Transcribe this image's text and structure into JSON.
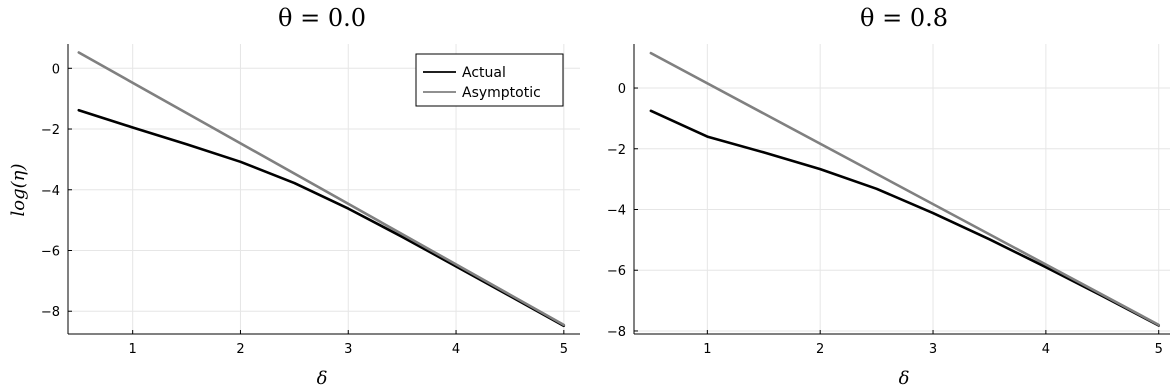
{
  "chart_data": [
    {
      "type": "line",
      "title": "θ = 0.0",
      "xlabel": "δ",
      "ylabel": "log(η)",
      "xlim": [
        0.4,
        5.15
      ],
      "ylim": [
        -8.75,
        0.8
      ],
      "xticks": [
        1,
        2,
        3,
        4,
        5
      ],
      "yticks": [
        0,
        -2,
        -4,
        -6,
        -8
      ],
      "ytick_labels": [
        "0",
        "−2",
        "−4",
        "−6",
        "−8"
      ],
      "grid": true,
      "legend": "top-right",
      "series": [
        {
          "name": "Actual",
          "color": "#000000",
          "x": [
            0.5,
            1.0,
            1.5,
            2.0,
            2.5,
            3.0,
            3.5,
            4.0,
            4.5,
            5.0
          ],
          "y": [
            -1.38,
            -1.95,
            -2.5,
            -3.08,
            -3.78,
            -4.62,
            -5.55,
            -6.52,
            -7.5,
            -8.48
          ]
        },
        {
          "name": "Asymptotic",
          "color": "#808080",
          "x": [
            0.5,
            5.0
          ],
          "y": [
            0.52,
            -8.45
          ]
        }
      ]
    },
    {
      "type": "line",
      "title": "θ = 0.8",
      "xlabel": "δ",
      "ylabel": "",
      "xlim": [
        0.35,
        5.1
      ],
      "ylim": [
        -8.1,
        1.45
      ],
      "xticks": [
        1,
        2,
        3,
        4,
        5
      ],
      "yticks": [
        0,
        -2,
        -4,
        -6,
        -8
      ],
      "ytick_labels": [
        "0",
        "−2",
        "−4",
        "−6",
        "−8"
      ],
      "grid": true,
      "legend": "none",
      "series": [
        {
          "name": "Actual",
          "color": "#000000",
          "x": [
            0.5,
            1.0,
            1.5,
            2.0,
            2.5,
            3.0,
            3.5,
            4.0,
            4.5,
            5.0
          ],
          "y": [
            -0.75,
            -1.6,
            -2.12,
            -2.67,
            -3.32,
            -4.12,
            -4.98,
            -5.9,
            -6.85,
            -7.82
          ]
        },
        {
          "name": "Asymptotic",
          "color": "#808080",
          "x": [
            0.5,
            5.0
          ],
          "y": [
            1.15,
            -7.8
          ]
        }
      ]
    }
  ]
}
